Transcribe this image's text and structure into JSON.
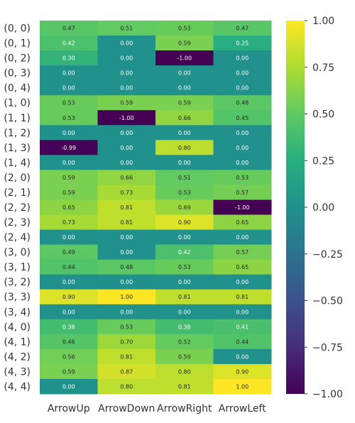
{
  "chart_data": {
    "type": "heatmap",
    "title": "",
    "xlabel": "",
    "ylabel": "",
    "x_categories": [
      "ArrowUp",
      "ArrowDown",
      "ArrowRight",
      "ArrowLeft"
    ],
    "y_categories": [
      "(0, 0)",
      "(0, 1)",
      "(0, 2)",
      "(0, 3)",
      "(0, 4)",
      "(1, 0)",
      "(1, 1)",
      "(1, 2)",
      "(1, 3)",
      "(1, 4)",
      "(2, 0)",
      "(2, 1)",
      "(2, 2)",
      "(2, 3)",
      "(2, 4)",
      "(3, 0)",
      "(3, 1)",
      "(3, 2)",
      "(3, 3)",
      "(3, 4)",
      "(4, 0)",
      "(4, 1)",
      "(4, 2)",
      "(4, 3)",
      "(4, 4)"
    ],
    "values": [
      [
        0.47,
        0.51,
        0.53,
        0.47
      ],
      [
        0.42,
        0.0,
        0.59,
        0.25
      ],
      [
        0.3,
        0.0,
        -1.0,
        0.0
      ],
      [
        0.0,
        0.0,
        0.0,
        0.0
      ],
      [
        0.0,
        0.0,
        0.0,
        0.0
      ],
      [
        0.53,
        0.59,
        0.59,
        0.48
      ],
      [
        0.53,
        -1.0,
        0.66,
        0.45
      ],
      [
        0.0,
        0.0,
        0.0,
        0.0
      ],
      [
        -0.99,
        0.0,
        0.8,
        0.0
      ],
      [
        0.0,
        0.0,
        0.0,
        0.0
      ],
      [
        0.59,
        0.66,
        0.51,
        0.53
      ],
      [
        0.59,
        0.73,
        0.53,
        0.57
      ],
      [
        0.65,
        0.81,
        0.69,
        -1.0
      ],
      [
        0.73,
        0.81,
        0.9,
        0.65
      ],
      [
        0.0,
        0.0,
        0.0,
        0.0
      ],
      [
        0.49,
        0.0,
        0.42,
        0.57
      ],
      [
        0.44,
        0.48,
        0.53,
        0.65
      ],
      [
        0.0,
        0.0,
        0.0,
        0.0
      ],
      [
        0.9,
        1.0,
        0.81,
        0.81
      ],
      [
        0.0,
        0.0,
        0.0,
        0.0
      ],
      [
        0.38,
        0.53,
        0.38,
        0.41
      ],
      [
        0.46,
        0.7,
        0.52,
        0.44
      ],
      [
        0.56,
        0.81,
        0.59,
        0.0
      ],
      [
        0.59,
        0.87,
        0.8,
        0.9
      ],
      [
        0.0,
        0.8,
        0.81,
        1.0
      ]
    ],
    "colormap": "viridis",
    "vmin": -1.0,
    "vmax": 1.0,
    "colorbar_ticks": [
      "1.00",
      "0.75",
      "0.50",
      "0.25",
      "0.00",
      "−0.25",
      "−0.50",
      "−0.75",
      "−1.00"
    ]
  }
}
